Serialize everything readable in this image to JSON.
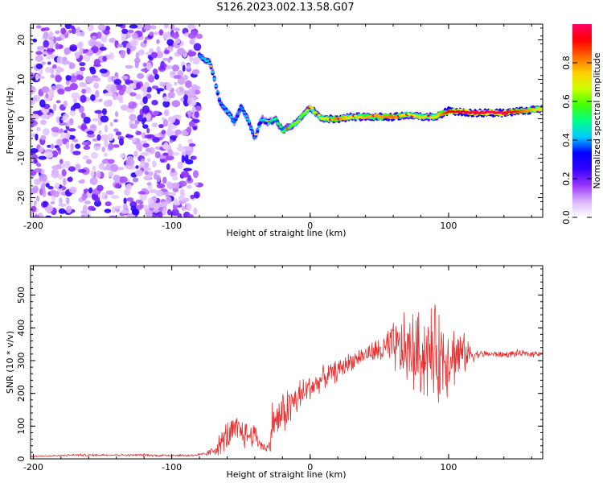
{
  "title": "S126.2023.002.13.58.G07",
  "chart_data": [
    {
      "type": "heatmap",
      "name": "spectrogram",
      "xlabel": "Height of straight line (km)",
      "ylabel": "Frequency (Hz)",
      "xlim": [
        -202,
        168
      ],
      "ylim": [
        -25,
        24
      ],
      "x_ticks": [
        -200,
        -100,
        0,
        100
      ],
      "y_ticks": [
        -20,
        -10,
        0,
        10,
        20
      ],
      "colorbar": {
        "label": "Normalized spectral amplitude",
        "range": [
          0,
          1
        ],
        "ticks": [
          0.0,
          0.2,
          0.4,
          0.6,
          0.8
        ],
        "colors": [
          "#ffffff",
          "#d9b3ff",
          "#9933ff",
          "#3300ff",
          "#0000ff",
          "#00ccff",
          "#00ff88",
          "#44ff00",
          "#ccff00",
          "#ffcc00",
          "#ff6600",
          "#ff0000",
          "#ff0066"
        ]
      },
      "features": [
        {
          "name": "noise-region",
          "x_range": [
            -202,
            -80
          ],
          "freq_range": [
            -25,
            24
          ],
          "amplitude": 0.15
        },
        {
          "name": "signal-trace",
          "x": [
            -80,
            -72,
            -65,
            -58,
            -55,
            -50,
            -45,
            -40,
            -35,
            -30,
            -25,
            -20,
            -15,
            -10,
            -5,
            0,
            5,
            10,
            20,
            30,
            40,
            50,
            60,
            70,
            80,
            90,
            100,
            120,
            140,
            168
          ],
          "freq": [
            16,
            14,
            4,
            1,
            -1,
            3,
            0,
            -5,
            0,
            -1,
            0,
            -3,
            -2,
            -1,
            1,
            3,
            1,
            0,
            0,
            0.5,
            0.5,
            0.5,
            0.5,
            1,
            0.5,
            0.5,
            2,
            1.5,
            1.5,
            2.5
          ],
          "amplitude": [
            0.3,
            0.4,
            0.3,
            0.35,
            0.3,
            0.3,
            0.35,
            0.3,
            0.35,
            0.4,
            0.45,
            0.45,
            0.5,
            0.55,
            0.5,
            0.6,
            0.55,
            0.6,
            0.75,
            0.6,
            0.7,
            0.7,
            0.75,
            0.6,
            0.65,
            0.6,
            0.85,
            0.9,
            0.9,
            0.6
          ]
        }
      ]
    },
    {
      "type": "line",
      "name": "snr",
      "xlabel": "Height of straight line (km)",
      "ylabel": "SNR (10 * v/v)",
      "xlim": [
        -202,
        168
      ],
      "ylim": [
        0,
        590
      ],
      "x_ticks": [
        -200,
        -100,
        0,
        100
      ],
      "y_ticks": [
        0,
        100,
        200,
        300,
        400,
        500
      ],
      "color": "#e83030",
      "series": [
        {
          "name": "SNR",
          "x": [
            -202,
            -190,
            -180,
            -170,
            -160,
            -150,
            -140,
            -130,
            -120,
            -110,
            -100,
            -90,
            -80,
            -75,
            -70,
            -65,
            -60,
            -55,
            -50,
            -45,
            -40,
            -35,
            -30,
            -27,
            -25,
            -20,
            -15,
            -10,
            -5,
            0,
            5,
            10,
            20,
            30,
            40,
            50,
            60,
            70,
            80,
            90,
            95,
            100,
            110,
            120,
            130,
            140,
            150,
            160,
            168
          ],
          "values": [
            8,
            9,
            10,
            12,
            11,
            12,
            12,
            11,
            12,
            10,
            11,
            10,
            12,
            15,
            25,
            45,
            70,
            80,
            85,
            70,
            75,
            40,
            30,
            120,
            110,
            140,
            160,
            180,
            200,
            220,
            230,
            250,
            270,
            300,
            320,
            330,
            340,
            330,
            320,
            320,
            310,
            320,
            320,
            320,
            320,
            318,
            322,
            320,
            325
          ],
          "spread": [
            3,
            3,
            3,
            4,
            4,
            4,
            4,
            4,
            4,
            4,
            4,
            4,
            5,
            8,
            20,
            40,
            60,
            60,
            60,
            50,
            45,
            20,
            20,
            90,
            70,
            80,
            80,
            70,
            60,
            50,
            40,
            40,
            40,
            35,
            30,
            50,
            90,
            140,
            160,
            170,
            180,
            140,
            80,
            15,
            12,
            12,
            12,
            12,
            12
          ]
        }
      ]
    }
  ]
}
